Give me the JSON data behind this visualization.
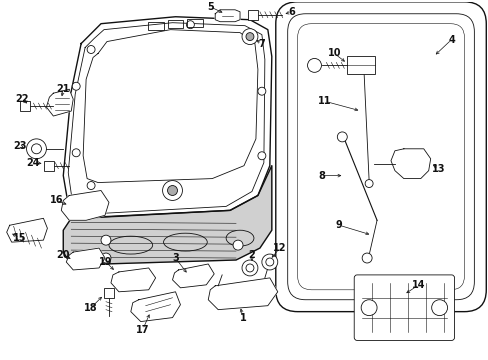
{
  "background_color": "#ffffff",
  "line_color": "#111111",
  "fig_width": 4.89,
  "fig_height": 3.6,
  "dpi": 100
}
